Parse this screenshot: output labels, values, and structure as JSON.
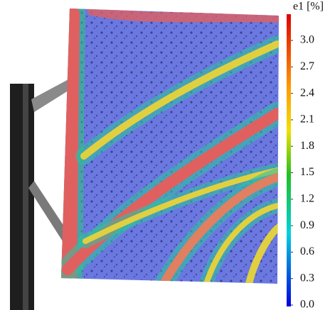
{
  "colorbar": {
    "title": "e1 [%]",
    "ticks": [
      {
        "value": 3,
        "label": "3.0"
      },
      {
        "value": 2.7,
        "label": "2.7"
      },
      {
        "value": 2.4,
        "label": "2.4"
      },
      {
        "value": 2.1,
        "label": "2.1"
      },
      {
        "value": 1.8,
        "label": "1.8"
      },
      {
        "value": 1.5,
        "label": "1.5"
      },
      {
        "value": 1.2,
        "label": "1.2"
      },
      {
        "value": 0.9,
        "label": "0.9"
      },
      {
        "value": 0.6,
        "label": "0.6"
      },
      {
        "value": 0.3,
        "label": "0.3"
      },
      {
        "value": 0,
        "label": "0.0"
      }
    ]
  }
}
